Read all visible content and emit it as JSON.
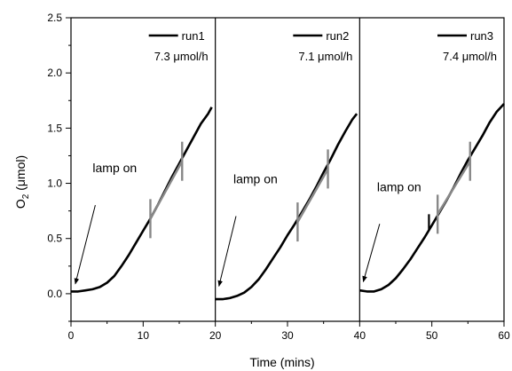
{
  "chart_data": {
    "type": "line",
    "xlabel": "Time (mins)",
    "ylabel_main": "O",
    "ylabel_sub": "2",
    "ylabel_rest": " (μmol)",
    "xlim": [
      0,
      60
    ],
    "ylim": [
      -0.25,
      2.5
    ],
    "x_ticks": [
      0,
      10,
      20,
      30,
      40,
      50,
      60
    ],
    "y_ticks": [
      0.0,
      0.5,
      1.0,
      1.5,
      2.0,
      2.5
    ],
    "y_tick_labels": [
      "0.0",
      "0.5",
      "1.0",
      "1.5",
      "2.0",
      "2.5"
    ],
    "panel_dividers": [
      20,
      40
    ],
    "legend_placement": "top-right of each panel",
    "grid": false,
    "line_color": "#000000",
    "fit_color": "#888888",
    "series": [
      {
        "name": "run1",
        "rate_label": "7.3 μmol/h",
        "points": [
          [
            0,
            0.02
          ],
          [
            1,
            0.02
          ],
          [
            2,
            0.03
          ],
          [
            3,
            0.04
          ],
          [
            4,
            0.06
          ],
          [
            5,
            0.1
          ],
          [
            6,
            0.16
          ],
          [
            7,
            0.25
          ],
          [
            8,
            0.35
          ],
          [
            9,
            0.46
          ],
          [
            10,
            0.57
          ],
          [
            11,
            0.68
          ],
          [
            12,
            0.8
          ],
          [
            13,
            0.93
          ],
          [
            14,
            1.06
          ],
          [
            15,
            1.18
          ],
          [
            16,
            1.3
          ],
          [
            17,
            1.42
          ],
          [
            18,
            1.54
          ],
          [
            19,
            1.63
          ],
          [
            19.5,
            1.69
          ]
        ],
        "fit_x": [
          11,
          15.4
        ],
        "fit_y": [
          0.68,
          1.2
        ],
        "markers": [
          [
            11,
            0.68
          ],
          [
            15.4,
            1.2
          ]
        ],
        "lamp_label": "lamp on",
        "lamp_arrow_target": [
          0.6,
          0.04
        ],
        "lamp_label_pos": [
          3,
          1.1
        ]
      },
      {
        "name": "run2",
        "rate_label": "7.1 μmol/h",
        "points": [
          [
            20,
            -0.05
          ],
          [
            21,
            -0.05
          ],
          [
            22,
            -0.04
          ],
          [
            23,
            -0.02
          ],
          [
            24,
            0.01
          ],
          [
            25,
            0.06
          ],
          [
            26,
            0.13
          ],
          [
            27,
            0.22
          ],
          [
            28,
            0.32
          ],
          [
            29,
            0.42
          ],
          [
            30,
            0.53
          ],
          [
            31,
            0.63
          ],
          [
            32,
            0.74
          ],
          [
            33,
            0.85
          ],
          [
            34,
            0.97
          ],
          [
            35,
            1.1
          ],
          [
            36,
            1.22
          ],
          [
            37,
            1.35
          ],
          [
            38,
            1.47
          ],
          [
            39,
            1.58
          ],
          [
            39.6,
            1.63
          ]
        ],
        "fit_x": [
          31.4,
          35.6
        ],
        "fit_y": [
          0.65,
          1.13
        ],
        "markers": [
          [
            31.4,
            0.65
          ],
          [
            35.6,
            1.13
          ]
        ],
        "lamp_label": "lamp on",
        "lamp_arrow_target": [
          20.5,
          0.02
        ],
        "lamp_label_pos": [
          22.5,
          1.0
        ]
      },
      {
        "name": "run3",
        "rate_label": "7.4 μmol/h",
        "points": [
          [
            40,
            0.03
          ],
          [
            41,
            0.02
          ],
          [
            42,
            0.02
          ],
          [
            43,
            0.04
          ],
          [
            44,
            0.08
          ],
          [
            45,
            0.14
          ],
          [
            46,
            0.22
          ],
          [
            47,
            0.31
          ],
          [
            48,
            0.41
          ],
          [
            49,
            0.51
          ],
          [
            50,
            0.62
          ],
          [
            51,
            0.73
          ],
          [
            52,
            0.84
          ],
          [
            53,
            0.96
          ],
          [
            54,
            1.09
          ],
          [
            55,
            1.21
          ],
          [
            56,
            1.32
          ],
          [
            57,
            1.43
          ],
          [
            58,
            1.55
          ],
          [
            59,
            1.65
          ],
          [
            60,
            1.72
          ]
        ],
        "fit_x": [
          50.8,
          55.3
        ],
        "fit_y": [
          0.72,
          1.2
        ],
        "markers": [
          [
            50.8,
            0.72
          ],
          [
            55.3,
            1.2
          ]
        ],
        "spike": [
          49.6,
          0.58,
          0.72
        ],
        "lamp_label": "lamp on",
        "lamp_arrow_target": [
          40.5,
          0.06
        ],
        "lamp_label_pos": [
          42.4,
          0.93
        ]
      }
    ]
  }
}
